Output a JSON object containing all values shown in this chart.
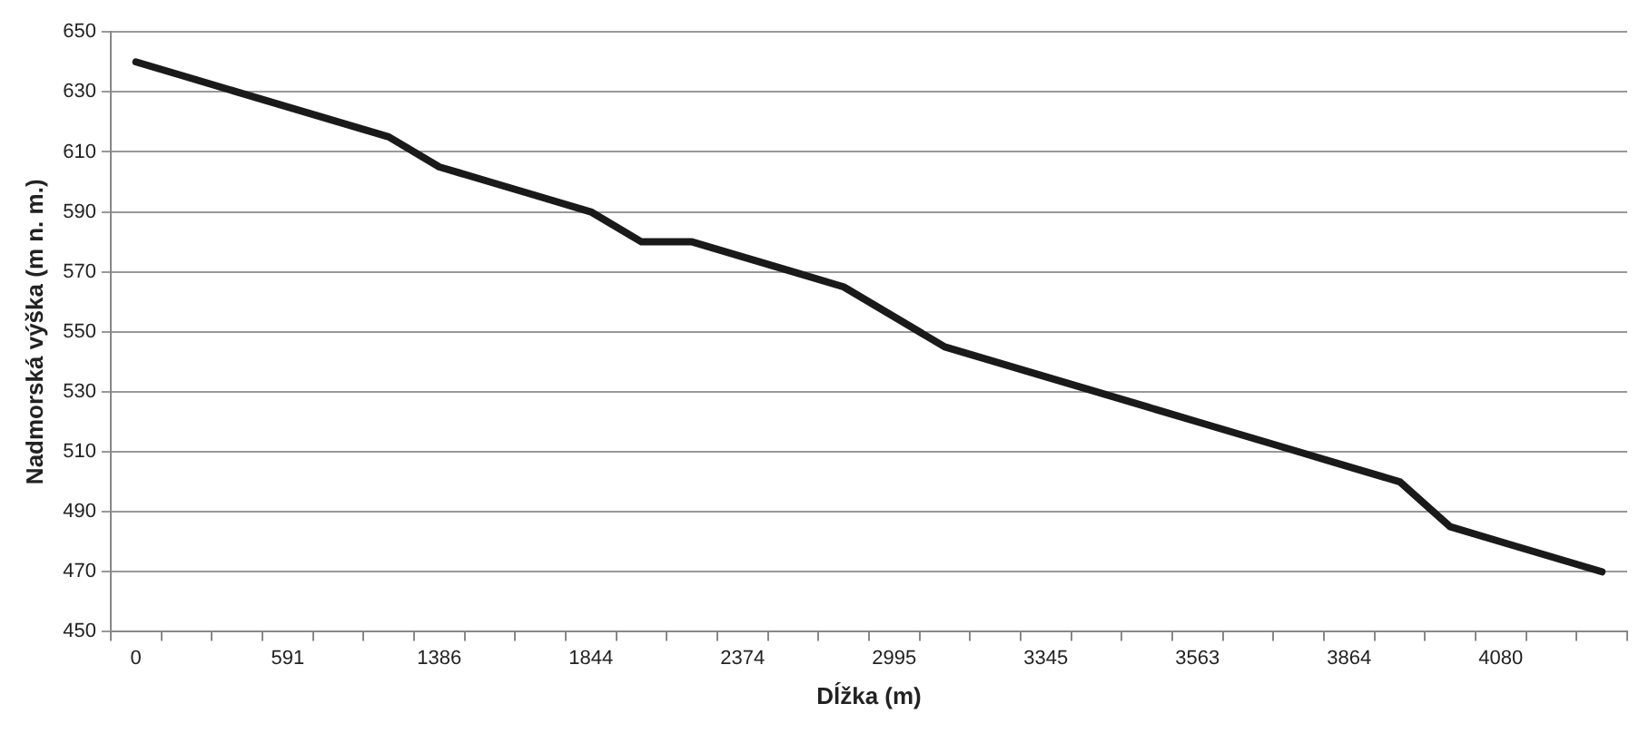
{
  "chart_data": {
    "type": "line",
    "xlabel": "Dĺžka (m)",
    "ylabel": "Nadmorská výška (m n. m.)",
    "categories": [
      "0",
      null,
      null,
      "591",
      null,
      null,
      "1386",
      null,
      null,
      "1844",
      null,
      null,
      "2374",
      null,
      null,
      "2995",
      null,
      null,
      "3345",
      null,
      null,
      "3563",
      null,
      null,
      "3864",
      null,
      null,
      "4080",
      null,
      null
    ],
    "series": [
      {
        "color": "#1a1a1a",
        "values": [
          640,
          635,
          630,
          625,
          620,
          615,
          605,
          600,
          595,
          590,
          580,
          580,
          575,
          570,
          565,
          555,
          545,
          540,
          535,
          530,
          525,
          520,
          515,
          510,
          505,
          500,
          485,
          480,
          475,
          470
        ]
      }
    ],
    "ylim": [
      450,
      650
    ],
    "yticks": [
      450,
      470,
      490,
      510,
      530,
      550,
      570,
      590,
      610,
      630,
      650
    ],
    "grid": "y",
    "legend": false,
    "marker": "none",
    "line_style": "solid"
  }
}
